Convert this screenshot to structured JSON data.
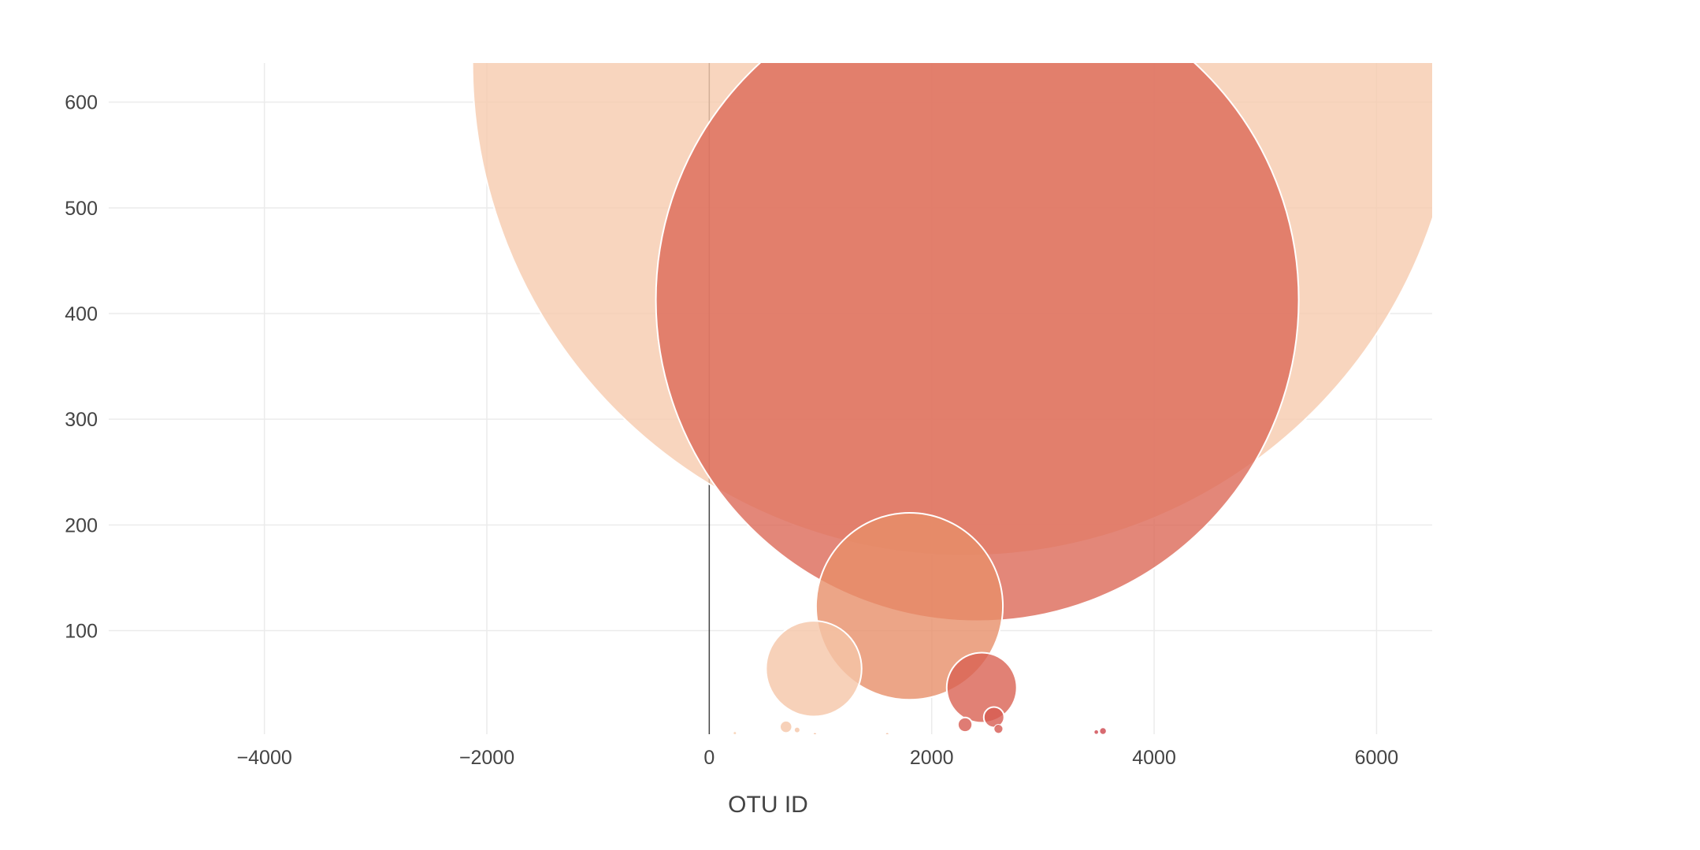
{
  "chart_data": {
    "type": "scatter",
    "subtype": "bubble",
    "title": "",
    "xlabel": "OTU ID",
    "ylabel": "",
    "xlim": [
      -5400,
      6500
    ],
    "ylim": [
      2,
      637
    ],
    "x_ticks": [
      -4000,
      -2000,
      0,
      2000,
      4000,
      6000
    ],
    "x_tick_labels": [
      "−4000",
      "−2000",
      "0",
      "2000",
      "4000",
      "6000"
    ],
    "y_ticks": [
      100,
      200,
      300,
      400,
      500,
      600
    ],
    "y_tick_labels": [
      "100",
      "200",
      "300",
      "400",
      "500",
      "600"
    ],
    "grid": true,
    "legend": "none",
    "zero_line_x": 0,
    "colorscale": [
      "#f7cfb2",
      "#e8906a",
      "#d95f52",
      "#c83a4a"
    ],
    "series": [
      {
        "x": [
          940,
          690,
          790,
          950,
          1600,
          1800,
          2300,
          2410,
          2450,
          2560,
          2300,
          2600,
          3480,
          3540,
          230
        ],
        "y": [
          64,
          9,
          6,
          2,
          2,
          123,
          637,
          413,
          46,
          18,
          11,
          7,
          4,
          5,
          3
        ],
        "size_data_units_x": [
          430,
          55,
          25,
          10,
          8,
          840,
          4430,
          2890,
          315,
          92,
          65,
          40,
          20,
          30,
          4
        ],
        "color_index": [
          0.05,
          0.05,
          0.05,
          0.1,
          0.1,
          0.35,
          0.02,
          0.6,
          0.65,
          0.7,
          0.7,
          0.72,
          0.9,
          0.9,
          0.0
        ]
      }
    ]
  }
}
